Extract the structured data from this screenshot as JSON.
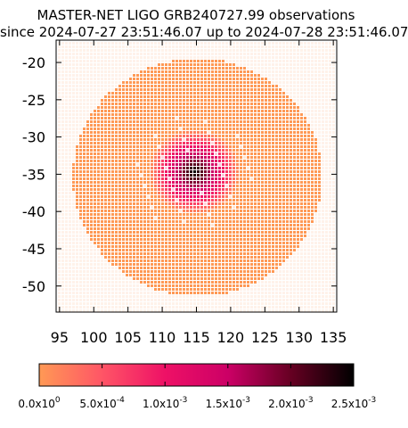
{
  "chart_data": {
    "type": "heatmap",
    "title_line1": "MASTER-NET LIGO GRB240727.99 observations",
    "title_line2": "since 2024-07-27 23:51:46.07 up to 2024-07-28 23:51:46.07",
    "x_ticks": [
      "95",
      "100",
      "105",
      "110",
      "115",
      "120",
      "125",
      "130",
      "135"
    ],
    "y_ticks": [
      "-20",
      "-25",
      "-30",
      "-35",
      "-40",
      "-45",
      "-50"
    ],
    "xlim": [
      94.5,
      135.5
    ],
    "ylim": [
      -53.5,
      -17
    ],
    "colorbar": {
      "ticks": [
        "0.0x10^0",
        "5.0x10^-4",
        "1.0x10^-3",
        "1.5x10^-3",
        "2.0x10^-3",
        "2.5x10^-3"
      ],
      "range": [
        0,
        0.0025
      ],
      "colors": [
        "#ff9955",
        "#ff5566",
        "#ee1166",
        "#cc0066",
        "#660022",
        "#000000"
      ]
    },
    "observed_region": {
      "description_values": {
        "center": [
          114.5,
          -34.5
        ],
        "peak_probability": 0.0025
      }
    }
  }
}
